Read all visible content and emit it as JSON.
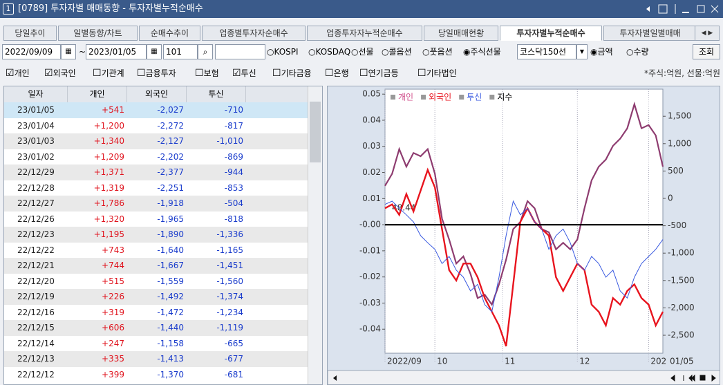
{
  "window": {
    "number": "1",
    "title": "[0789] 투자자별 매매동향 - 투자자별누적순매수"
  },
  "tabs": [
    "당일추이",
    "일별동향/차트",
    "순매수추이",
    "업종별투자자순매수",
    "업종투자자누적순매수",
    "당일매매현황",
    "투자자별누적순매수",
    "투자자별일별매매"
  ],
  "active_tab": 6,
  "controls": {
    "start_date": "2022/09/09",
    "separator": "~",
    "end_date": "2023/01/05",
    "code": "101",
    "markets": [
      {
        "label": "KOSPI",
        "selected": false
      },
      {
        "label": "KOSDAQ",
        "selected": false
      },
      {
        "label": "선물",
        "selected": false
      },
      {
        "label": "콜옵션",
        "selected": false
      },
      {
        "label": "풋옵션",
        "selected": false
      },
      {
        "label": "주식선물",
        "selected": true
      }
    ],
    "combo": "코스닥150선",
    "units": [
      {
        "label": "금액",
        "selected": true
      },
      {
        "label": "수량",
        "selected": false
      }
    ],
    "button": "조회"
  },
  "filters": [
    {
      "label": "개인",
      "checked": true
    },
    {
      "label": "외국인",
      "checked": true
    },
    {
      "label": "기관계",
      "checked": false
    },
    {
      "label": "금융투자",
      "checked": false
    },
    {
      "label": "보험",
      "checked": false
    },
    {
      "label": "투신",
      "checked": true
    },
    {
      "label": "기타금융",
      "checked": false
    },
    {
      "label": "은행",
      "checked": false
    },
    {
      "label": "연기금등",
      "checked": false
    },
    {
      "label": "기타법인",
      "checked": false
    }
  ],
  "unit_note": "*주식:억원, 선물:억원",
  "table": {
    "columns": [
      "일자",
      "개인",
      "외국인",
      "투신"
    ],
    "selected_row": 0,
    "rows": [
      [
        "23/01/05",
        "+541",
        "-2,027",
        "-710"
      ],
      [
        "23/01/04",
        "+1,200",
        "-2,272",
        "-817"
      ],
      [
        "23/01/03",
        "+1,340",
        "-2,127",
        "-1,010"
      ],
      [
        "23/01/02",
        "+1,209",
        "-2,202",
        "-869"
      ],
      [
        "22/12/29",
        "+1,371",
        "-2,377",
        "-944"
      ],
      [
        "22/12/28",
        "+1,319",
        "-2,251",
        "-853"
      ],
      [
        "22/12/27",
        "+1,786",
        "-1,918",
        "-504"
      ],
      [
        "22/12/26",
        "+1,320",
        "-1,965",
        "-818"
      ],
      [
        "22/12/23",
        "+1,195",
        "-1,890",
        "-1,336"
      ],
      [
        "22/12/22",
        "+743",
        "-1,640",
        "-1,165"
      ],
      [
        "22/12/21",
        "+744",
        "-1,667",
        "-1,451"
      ],
      [
        "22/12/20",
        "+515",
        "-1,559",
        "-1,560"
      ],
      [
        "22/12/19",
        "+226",
        "-1,492",
        "-1,374"
      ],
      [
        "22/12/16",
        "+319",
        "-1,472",
        "-1,234"
      ],
      [
        "22/12/15",
        "+606",
        "-1,440",
        "-1,119"
      ],
      [
        "22/12/14",
        "+247",
        "-1,158",
        "-665"
      ],
      [
        "22/12/13",
        "+335",
        "-1,413",
        "-677"
      ],
      [
        "22/12/12",
        "+399",
        "-1,370",
        "-681"
      ]
    ]
  },
  "chart": {
    "type": "line",
    "annotation": "48.44",
    "end_label": "01/05",
    "x": [
      0,
      1,
      2,
      3,
      4,
      5,
      6,
      7,
      8,
      9,
      10,
      11,
      12,
      13,
      14,
      15,
      16,
      17,
      18,
      19,
      20,
      21,
      22,
      23,
      24,
      25,
      26,
      27,
      28,
      29,
      30,
      31,
      32,
      33,
      34,
      35,
      36,
      37,
      38,
      39
    ],
    "xlim": [
      0,
      39
    ],
    "xticks": [
      {
        "value": 0,
        "label": "2022/09"
      },
      {
        "value": 7,
        "label": "10"
      },
      {
        "value": 16.5,
        "label": "11"
      },
      {
        "value": 27,
        "label": "12"
      },
      {
        "value": 37,
        "label": "202"
      }
    ],
    "ylim": [
      -0.0492,
      0.0519
    ],
    "yticks": [
      0.05,
      0.04,
      0.03,
      0.02,
      0.01,
      {
        "value": 0,
        "label": "-0.00"
      },
      -0.01,
      -0.02,
      -0.03,
      -0.04
    ],
    "y2lim": [
      -2828,
      1995
    ],
    "y2ticks": [
      {
        "value": 1500,
        "label": "1,500"
      },
      {
        "value": 1000,
        "label": "1,000"
      },
      500,
      0,
      -500,
      {
        "value": -1000,
        "label": "-1,000"
      },
      {
        "value": -1500,
        "label": "-1,500"
      },
      {
        "value": -2000,
        "label": "-2,000"
      },
      {
        "value": -2500,
        "label": "-2,500"
      }
    ],
    "series": [
      {
        "name": "개인",
        "color": "#8e3c70",
        "legend_color": "#d0508c",
        "axis": "y2",
        "width": 2.2,
        "values": [
          230,
          450,
          900,
          580,
          830,
          770,
          900,
          450,
          -370,
          -750,
          -1190,
          -1060,
          -1380,
          -1820,
          -1760,
          -1940,
          -1570,
          -1120,
          -560,
          -430,
          -50,
          -180,
          -560,
          -620,
          -930,
          -810,
          -930,
          -750,
          -180,
          330,
          580,
          710,
          960,
          1090,
          1280,
          1720,
          1280,
          1340,
          1150,
          580
        ]
      },
      {
        "name": "외국인",
        "color": "#e8141e",
        "legend_color": "#e8141e",
        "axis": "y2",
        "width": 2.4,
        "values": [
          -180,
          -110,
          -300,
          80,
          -240,
          140,
          520,
          200,
          -560,
          -1310,
          -1500,
          -1190,
          -1190,
          -1440,
          -1820,
          -2070,
          -2320,
          -2700,
          -1570,
          -430,
          -180,
          -430,
          -560,
          -680,
          -1440,
          -1690,
          -1440,
          -1190,
          -1310,
          -1940,
          -2070,
          -2320,
          -1820,
          -1940,
          -1690,
          -1570,
          -1820,
          -1940,
          -2320,
          -2070
        ]
      },
      {
        "name": "투신",
        "color": "#3a5ae0",
        "legend_color": "#3a5ae0",
        "axis": "y2",
        "width": 1,
        "values": [
          -110,
          -50,
          -180,
          -300,
          -430,
          -680,
          -810,
          -930,
          -1190,
          -1060,
          -1310,
          -1440,
          -1690,
          -1570,
          -1940,
          -2070,
          -1440,
          -680,
          -50,
          -300,
          -180,
          -430,
          -560,
          -930,
          -680,
          -560,
          -810,
          -1190,
          -1310,
          -1060,
          -1190,
          -1440,
          -1310,
          -1690,
          -1820,
          -1440,
          -1190,
          -1060,
          -930,
          -750
        ]
      },
      {
        "name": "지수",
        "color": "#000000",
        "legend_color": "#000000",
        "axis": "y",
        "width": 2.2,
        "values": [
          0,
          0,
          0,
          0,
          0,
          0,
          0,
          0,
          0,
          0,
          0,
          0,
          0,
          0,
          0,
          0,
          0,
          0,
          0,
          0,
          0,
          0,
          0,
          0,
          0,
          0,
          0,
          0,
          0,
          0,
          0,
          0,
          0,
          0,
          0,
          0,
          0,
          0,
          0,
          0
        ]
      }
    ]
  }
}
